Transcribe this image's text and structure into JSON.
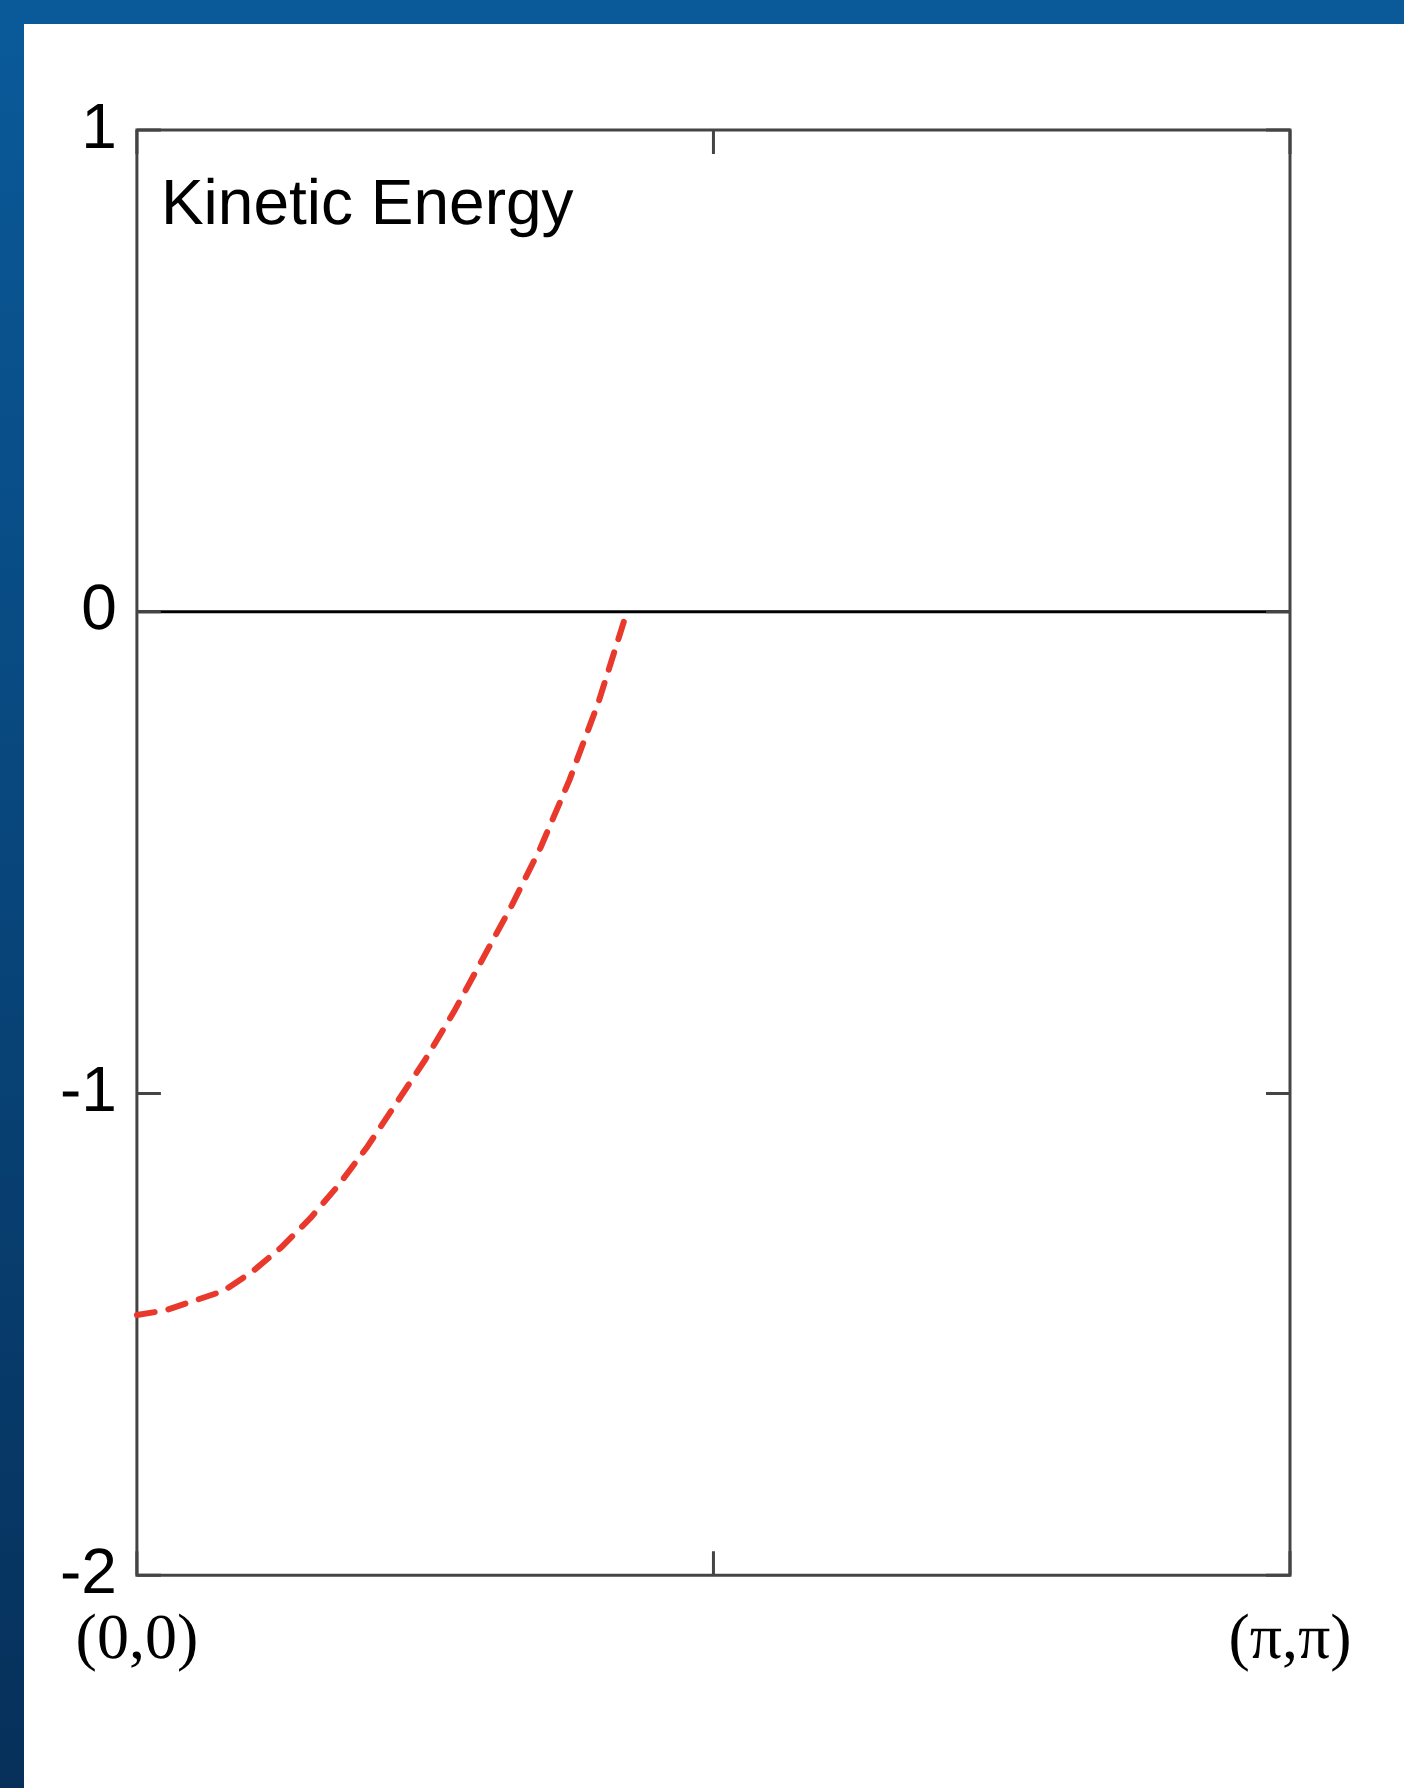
{
  "chart_data": {
    "type": "line",
    "title": "Kinetic Energy",
    "categories": [
      "(0,0)",
      null,
      null,
      null,
      null,
      null,
      null,
      null,
      null,
      null,
      null,
      null,
      null,
      null,
      null,
      null,
      null,
      null,
      null,
      null,
      null,
      null,
      null,
      null,
      null,
      null,
      null,
      null,
      null,
      null,
      null,
      null,
      null,
      null,
      null,
      null,
      null,
      null,
      null,
      null,
      "(π,π)"
    ],
    "series": [
      {
        "color": "#e8392c",
        "values": [
          -1.46,
          -1.45,
          -1.43,
          -1.41,
          -1.37,
          -1.32,
          -1.26,
          -1.19,
          -1.11,
          -1.02,
          -0.93,
          -0.83,
          -0.72,
          -0.61,
          -0.49,
          -0.35,
          -0.19,
          0,
          null,
          null,
          null,
          null,
          null,
          null,
          null,
          null,
          null,
          null,
          null,
          null,
          null,
          null,
          null,
          null,
          null,
          null,
          null,
          null,
          null,
          null,
          null
        ]
      }
    ],
    "ylim": [
      -2,
      1
    ],
    "yticks": [
      -2,
      -1,
      0,
      1
    ],
    "ref_lines": [
      {
        "axis": "y",
        "value": 0,
        "color": "#000000"
      }
    ],
    "line_style": "dashed",
    "marker": "none",
    "grid": false,
    "legend": false
  }
}
